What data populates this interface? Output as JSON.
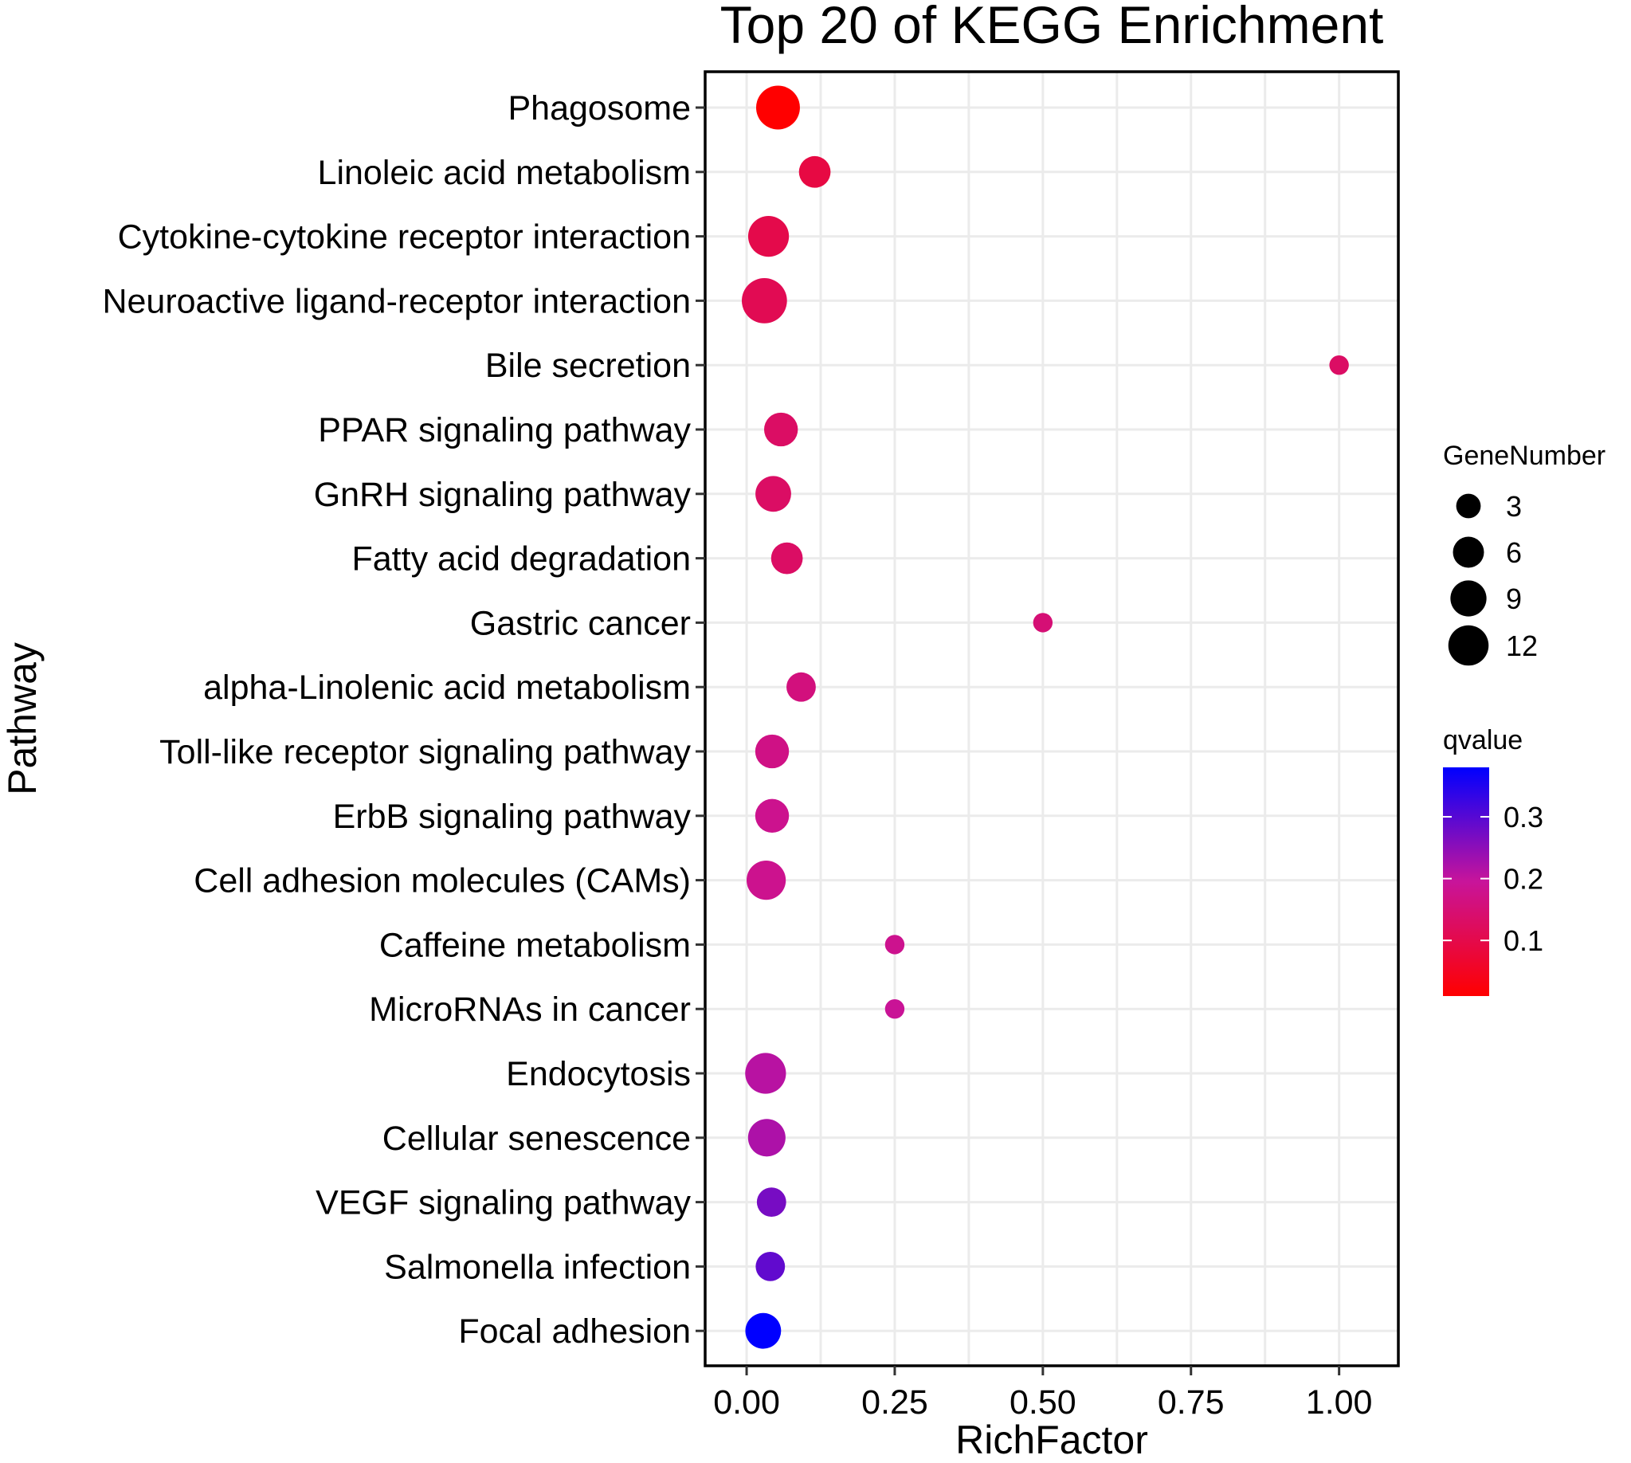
{
  "chart_data": {
    "type": "scatter",
    "title": "Top 20 of KEGG Enrichment",
    "xlabel": "RichFactor",
    "ylabel": "Pathway",
    "xlim": [
      -0.07,
      1.1
    ],
    "xticks": [
      0.0,
      0.25,
      0.5,
      0.75,
      1.0
    ],
    "xtick_labels": [
      "0.00",
      "0.25",
      "0.50",
      "0.75",
      "1.00"
    ],
    "grid": true,
    "points": [
      {
        "pathway": "Phagosome",
        "rich_factor": 0.053,
        "gene_number": 12,
        "qvalue": 0.01
      },
      {
        "pathway": "Linoleic acid metabolism",
        "rich_factor": 0.115,
        "gene_number": 5,
        "qvalue": 0.09
      },
      {
        "pathway": "Cytokine-cytokine receptor interaction",
        "rich_factor": 0.037,
        "gene_number": 10,
        "qvalue": 0.1
      },
      {
        "pathway": "Neuroactive ligand-receptor interaction",
        "rich_factor": 0.03,
        "gene_number": 13,
        "qvalue": 0.11
      },
      {
        "pathway": "Bile secretion",
        "rich_factor": 1.0,
        "gene_number": 1,
        "qvalue": 0.13
      },
      {
        "pathway": "PPAR signaling pathway",
        "rich_factor": 0.058,
        "gene_number": 6,
        "qvalue": 0.13
      },
      {
        "pathway": "GnRH signaling pathway",
        "rich_factor": 0.045,
        "gene_number": 7,
        "qvalue": 0.13
      },
      {
        "pathway": "Fatty acid degradation",
        "rich_factor": 0.068,
        "gene_number": 5,
        "qvalue": 0.13
      },
      {
        "pathway": "Gastric cancer",
        "rich_factor": 0.5,
        "gene_number": 1,
        "qvalue": 0.15
      },
      {
        "pathway": "alpha-Linolenic acid metabolism",
        "rich_factor": 0.092,
        "gene_number": 4,
        "qvalue": 0.16
      },
      {
        "pathway": "Toll-like receptor signaling pathway",
        "rich_factor": 0.043,
        "gene_number": 6,
        "qvalue": 0.17
      },
      {
        "pathway": "ErbB signaling pathway",
        "rich_factor": 0.043,
        "gene_number": 6,
        "qvalue": 0.18
      },
      {
        "pathway": "Cell adhesion molecules (CAMs)",
        "rich_factor": 0.033,
        "gene_number": 9,
        "qvalue": 0.18
      },
      {
        "pathway": "Caffeine metabolism",
        "rich_factor": 0.25,
        "gene_number": 1,
        "qvalue": 0.18
      },
      {
        "pathway": "MicroRNAs in cancer",
        "rich_factor": 0.25,
        "gene_number": 1,
        "qvalue": 0.19
      },
      {
        "pathway": "Endocytosis",
        "rich_factor": 0.032,
        "gene_number": 10,
        "qvalue": 0.21
      },
      {
        "pathway": "Cellular senescence",
        "rich_factor": 0.034,
        "gene_number": 8,
        "qvalue": 0.22
      },
      {
        "pathway": "VEGF signaling pathway",
        "rich_factor": 0.042,
        "gene_number": 4,
        "qvalue": 0.27
      },
      {
        "pathway": "Salmonella infection",
        "rich_factor": 0.04,
        "gene_number": 4,
        "qvalue": 0.29
      },
      {
        "pathway": "Focal adhesion",
        "rich_factor": 0.028,
        "gene_number": 7,
        "qvalue": 0.38
      }
    ],
    "size_legend": {
      "title": "GeneNumber",
      "values": [
        3,
        6,
        9,
        12
      ],
      "labels": [
        "3",
        "6",
        "9",
        "12"
      ]
    },
    "color_legend": {
      "title": "qvalue",
      "range": [
        0.01,
        0.38
      ],
      "ticks": [
        0.1,
        0.2,
        0.3
      ],
      "tick_labels": [
        "0.1",
        "0.2",
        "0.3"
      ],
      "low_color": "#ff0000",
      "high_color": "#0000ff"
    }
  }
}
